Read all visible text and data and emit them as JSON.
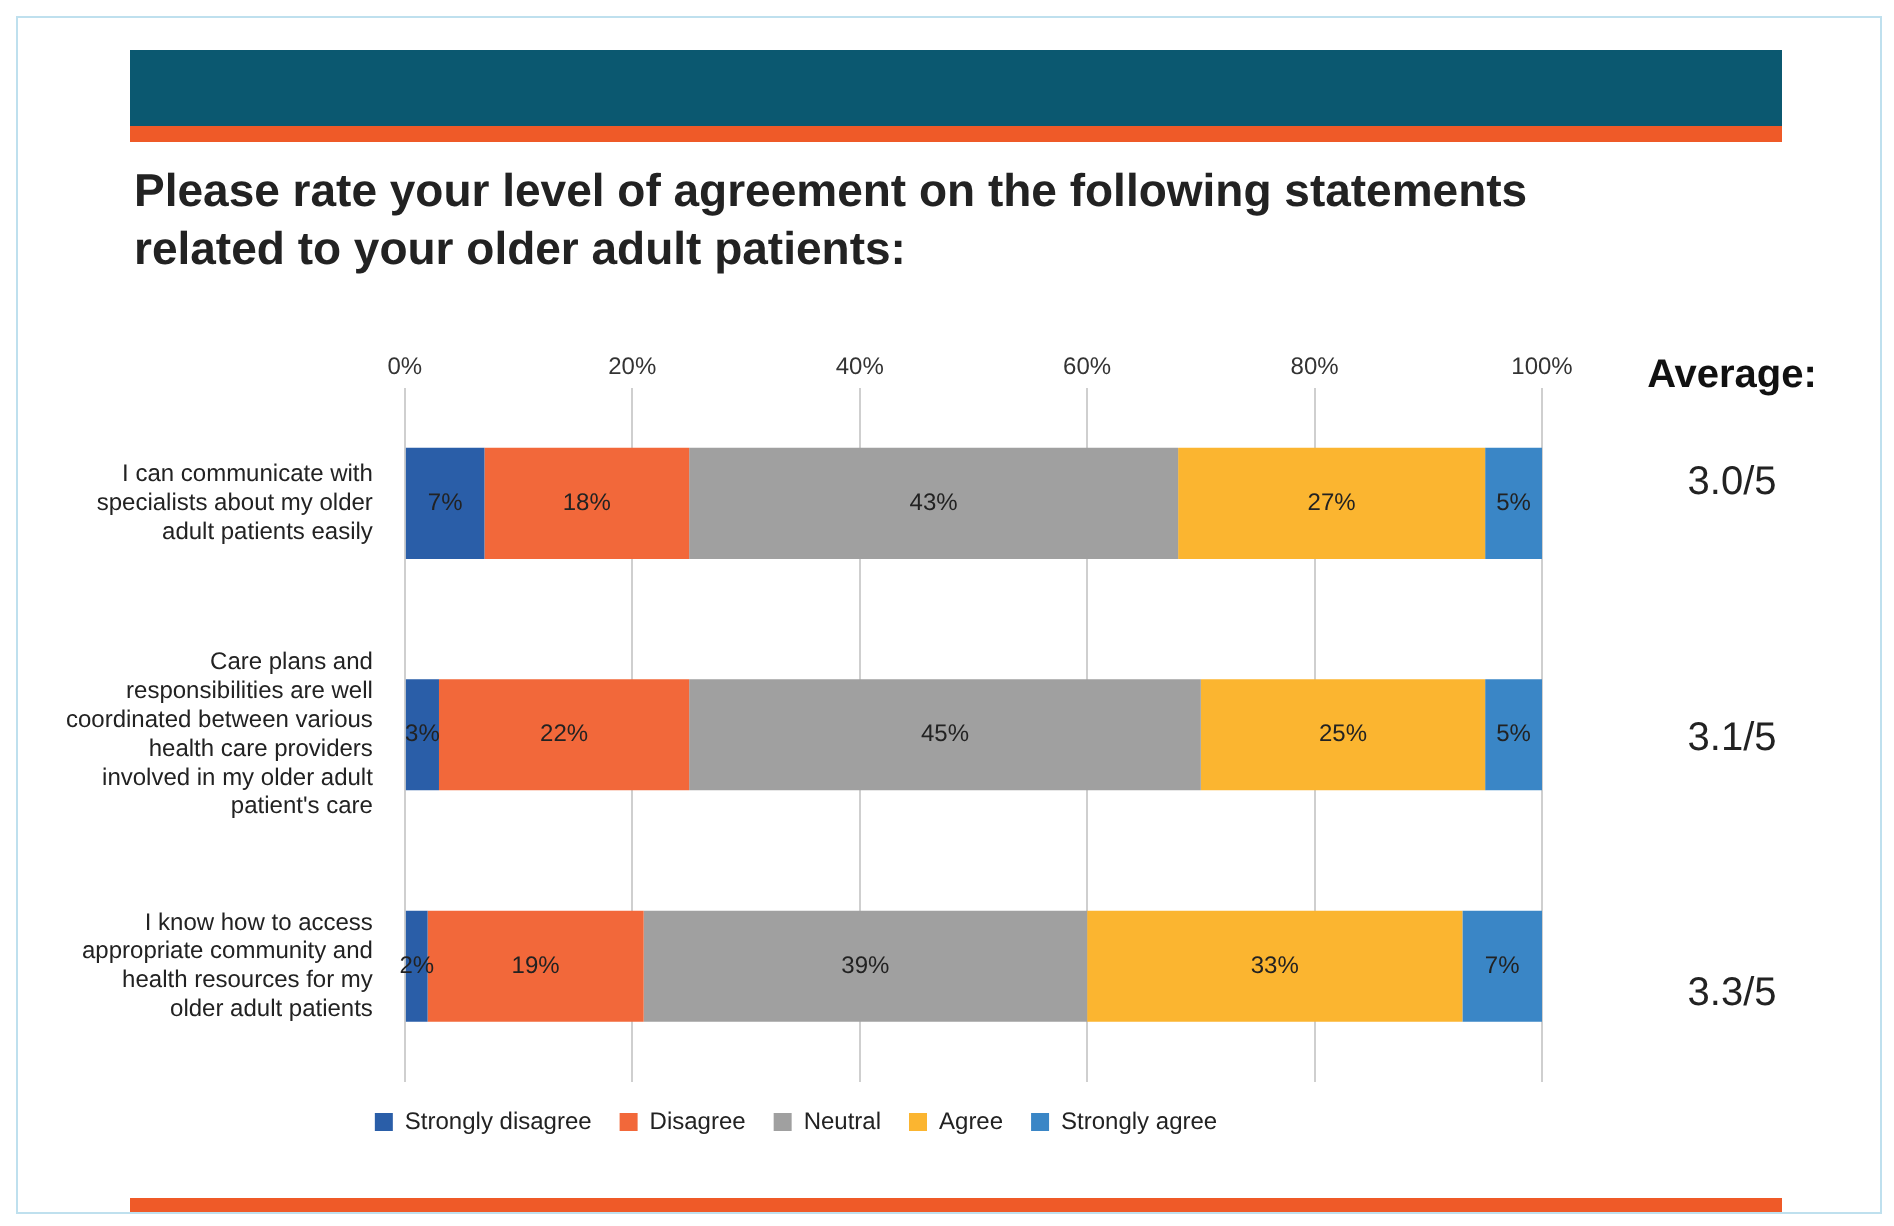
{
  "chart_data": {
    "type": "bar",
    "orientation": "horizontal",
    "stacked": true,
    "title": "Please rate your level of agreement on the following statements related to your older adult patients:",
    "categories": [
      "I can communicate with specialists about my older adult patients easily",
      "Care plans and responsibilities are well coordinated between various health care providers involved in my older adult patient's care",
      "I know how to access appropriate community and health resources for my older adult patients"
    ],
    "series": [
      {
        "name": "Strongly disagree",
        "color": "#2a5ea8",
        "values": [
          7,
          3,
          2
        ]
      },
      {
        "name": "Disagree",
        "color": "#f2683a",
        "values": [
          18,
          22,
          19
        ]
      },
      {
        "name": "Neutral",
        "color": "#a0a0a0",
        "values": [
          43,
          45,
          39
        ]
      },
      {
        "name": "Agree",
        "color": "#fbb530",
        "values": [
          27,
          25,
          33
        ]
      },
      {
        "name": "Strongly agree",
        "color": "#3a86c6",
        "values": [
          5,
          5,
          7
        ]
      }
    ],
    "value_labels": [
      [
        "7%",
        "3%",
        "2%"
      ],
      [
        "18%",
        "22%",
        "19%"
      ],
      [
        "43%",
        "45%",
        "39%"
      ],
      [
        "27%",
        "25%",
        "33%"
      ],
      [
        "5%",
        "5%",
        "7%"
      ]
    ],
    "xlim": [
      0,
      100
    ],
    "xticks": [
      {
        "value": 0,
        "label": "0%"
      },
      {
        "value": 20,
        "label": "20%"
      },
      {
        "value": 40,
        "label": "40%"
      },
      {
        "value": 60,
        "label": "60%"
      },
      {
        "value": 80,
        "label": "80%"
      },
      {
        "value": 100,
        "label": "100%"
      }
    ],
    "grid": "x",
    "legend": "bottom",
    "annotations": [
      "Average:",
      "3.0/5",
      "3.1/5",
      "3.3/5"
    ]
  }
}
